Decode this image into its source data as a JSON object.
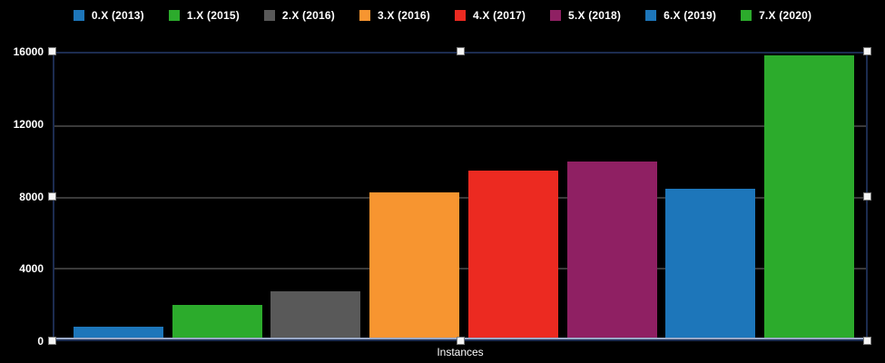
{
  "chart_data": {
    "type": "bar",
    "title": "",
    "xlabel": "Instances",
    "ylabel": "",
    "categories": [
      "0.X (2013)",
      "1.X (2015)",
      "2.X (2016)",
      "3.X (2016)",
      "4.X (2017)",
      "5.X (2018)",
      "6.X (2019)",
      "7.X (2020)"
    ],
    "values": [
      700,
      1950,
      2700,
      8250,
      9450,
      9950,
      8450,
      15900
    ],
    "colors": [
      "#1d76ba",
      "#2cab2c",
      "#595959",
      "#f79530",
      "#ec2a21",
      "#8f2063",
      "#1d76ba",
      "#2cab2c"
    ],
    "ylim": [
      0,
      16000
    ],
    "yticks": [
      0,
      4000,
      8000,
      12000,
      16000
    ],
    "legend_position": "top",
    "grid": true,
    "background": "#000000",
    "text_color": "#ffffff"
  },
  "selection": {
    "visible": true,
    "handle_color": "#f5f5f5",
    "border_color": "#1c2c50",
    "handle_positions": [
      "top-left",
      "top-center",
      "top-right",
      "mid-left",
      "mid-right",
      "bottom-left",
      "bottom-center",
      "bottom-right"
    ]
  }
}
